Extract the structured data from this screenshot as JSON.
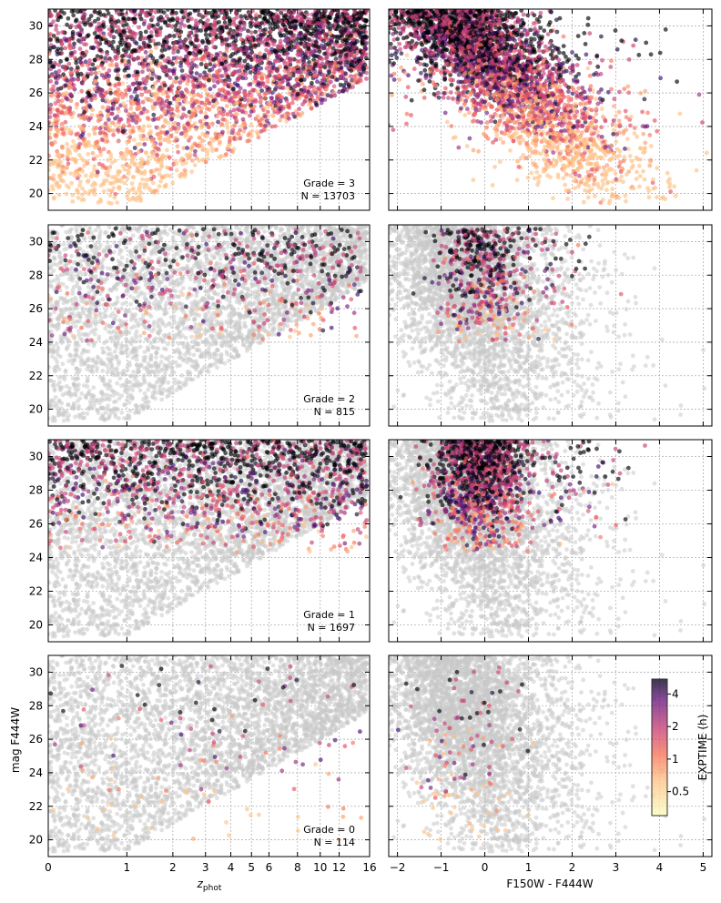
{
  "chart_data": [
    {
      "type": "scatter",
      "panel": "grade-3-zphot",
      "x_axis": "z_phot",
      "xlim": [
        0,
        17
      ],
      "x_scale": "log(1+z)",
      "ylim": [
        19,
        31
      ],
      "grid": true,
      "annotation": [
        "Grade = 3",
        "N = 13703"
      ],
      "grade": 3,
      "n": 13703
    },
    {
      "type": "scatter",
      "panel": "grade-3-color",
      "x_axis": "F150W - F444W",
      "xlim": [
        -2.2,
        5.2
      ],
      "ylim": [
        19,
        31
      ],
      "grid": true,
      "grade": 3
    },
    {
      "type": "scatter",
      "panel": "grade-2-zphot",
      "x_axis": "z_phot",
      "xlim": [
        0,
        17
      ],
      "x_scale": "log(1+z)",
      "ylim": [
        19,
        31
      ],
      "grid": true,
      "annotation": [
        "Grade = 2",
        "N = 815"
      ],
      "grade": 2,
      "n": 815
    },
    {
      "type": "scatter",
      "panel": "grade-2-color",
      "x_axis": "F150W - F444W",
      "xlim": [
        -2.2,
        5.2
      ],
      "ylim": [
        19,
        31
      ],
      "grid": true,
      "grade": 2
    },
    {
      "type": "scatter",
      "panel": "grade-1-zphot",
      "x_axis": "z_phot",
      "xlim": [
        0,
        17
      ],
      "x_scale": "log(1+z)",
      "ylim": [
        19,
        31
      ],
      "grid": true,
      "annotation": [
        "Grade = 1",
        "N = 1697"
      ],
      "grade": 1,
      "n": 1697
    },
    {
      "type": "scatter",
      "panel": "grade-1-color",
      "x_axis": "F150W - F444W",
      "xlim": [
        -2.2,
        5.2
      ],
      "ylim": [
        19,
        31
      ],
      "grid": true,
      "grade": 1
    },
    {
      "type": "scatter",
      "panel": "grade-0-zphot",
      "x_axis": "z_phot",
      "xlim": [
        0,
        17
      ],
      "x_scale": "log(1+z)",
      "ylim": [
        19,
        31
      ],
      "grid": true,
      "annotation": [
        "Grade = 0",
        "N = 114"
      ],
      "grade": 0,
      "n": 114
    },
    {
      "type": "scatter",
      "panel": "grade-0-color",
      "x_axis": "F150W - F444W",
      "xlim": [
        -2.2,
        5.2
      ],
      "ylim": [
        19,
        31
      ],
      "grid": true,
      "grade": 0
    }
  ],
  "axes": {
    "ylabel": "mag F444W",
    "xlabel_left_main": "z",
    "xlabel_left_sub": "phot",
    "xlabel_right": "F150W - F444W",
    "y_ticks": [
      "20",
      "22",
      "24",
      "26",
      "28",
      "30"
    ],
    "y_tick_values": [
      20,
      22,
      24,
      26,
      28,
      30
    ],
    "z_ticks": [
      "0",
      "1",
      "2",
      "3",
      "4",
      "5",
      "6",
      "8",
      "10",
      "12",
      "16"
    ],
    "z_tick_values": [
      0,
      1,
      2,
      3,
      4,
      5,
      6,
      8,
      10,
      12,
      16
    ],
    "color_ticks": [
      "−2",
      "−1",
      "0",
      "1",
      "2",
      "3",
      "4",
      "5"
    ],
    "color_tick_values": [
      -2,
      -1,
      0,
      1,
      2,
      3,
      4,
      5
    ]
  },
  "colorbar": {
    "label": "EXPTIME (h)",
    "ticks": [
      "0.5",
      "1",
      "2",
      "4"
    ],
    "tick_values": [
      0.5,
      1,
      2,
      4
    ],
    "range": [
      0.3,
      5.5
    ],
    "colormap": "magma_r"
  },
  "colors": {
    "background_points": "#c8c8c8",
    "low_exptime": "#fcfdbf",
    "mid_low": "#fb8861",
    "mid": "#b73779",
    "mid_high": "#51127c",
    "high_exptime": "#000004"
  }
}
